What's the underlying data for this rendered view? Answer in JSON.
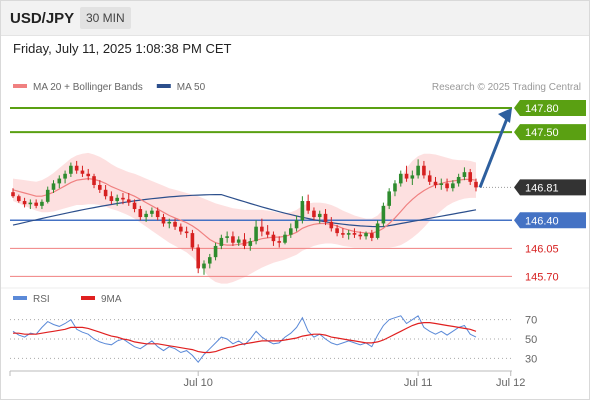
{
  "header": {
    "symbol": "USD/JPY",
    "timeframe": "30 MIN"
  },
  "datetime": "Friday, July 11, 2025 1:08:38 PM CET",
  "legend": [
    {
      "label": "MA 20 + Bollinger Bands",
      "color": "#f08080"
    },
    {
      "label": "MA 50",
      "color": "#2c4f8c"
    }
  ],
  "rsi_legend": [
    {
      "label": "RSI",
      "color": "#5b8ad8"
    },
    {
      "label": "9MA",
      "color": "#e02020"
    }
  ],
  "copyright": "Research © 2025 Trading Central",
  "colors": {
    "bull": "#2e8b2e",
    "bear": "#d62020",
    "target": "#5aa012",
    "pivot": "#4472c4",
    "support": "#f08080",
    "band": "#fcd6d6",
    "ma20": "#f08080",
    "ma50": "#2c4f8c",
    "rsi": "#5b8ad8",
    "rsi_ma": "#e02020",
    "arrow": "#2d5f9e",
    "last": "#333333"
  },
  "chart_data": [
    {
      "type": "candlestick",
      "title": "",
      "y_range": [
        145.68,
        147.9
      ],
      "x_ticks": [
        "Jul 10",
        "Jul 11",
        "Jul 12"
      ],
      "x_tick_index": [
        32,
        70,
        86
      ],
      "levels": [
        {
          "value": 147.8,
          "label": "147.80",
          "style": "target"
        },
        {
          "value": 147.5,
          "label": "147.50",
          "style": "target"
        },
        {
          "value": 146.81,
          "label": "146.81",
          "style": "last"
        },
        {
          "value": 146.4,
          "label": "146.40",
          "style": "pivot"
        },
        {
          "value": 146.05,
          "label": "146.05",
          "style": "support"
        },
        {
          "value": 145.7,
          "label": "145.70",
          "style": "support"
        }
      ],
      "projection": {
        "from": 146.81,
        "to": 147.8
      },
      "candles": [
        [
          146.75,
          146.8,
          146.68,
          146.7
        ],
        [
          146.7,
          146.72,
          146.62,
          146.64
        ],
        [
          146.64,
          146.68,
          146.56,
          146.6
        ],
        [
          146.6,
          146.66,
          146.54,
          146.62
        ],
        [
          146.62,
          146.66,
          146.55,
          146.58
        ],
        [
          146.58,
          146.66,
          146.54,
          146.63
        ],
        [
          146.63,
          146.82,
          146.61,
          146.78
        ],
        [
          146.78,
          146.9,
          146.74,
          146.86
        ],
        [
          146.86,
          146.96,
          146.8,
          146.92
        ],
        [
          146.92,
          147.02,
          146.86,
          146.98
        ],
        [
          146.98,
          147.12,
          146.94,
          147.08
        ],
        [
          147.08,
          147.14,
          146.98,
          147.02
        ],
        [
          147.02,
          147.08,
          146.94,
          146.98
        ],
        [
          146.98,
          147.04,
          146.9,
          146.95
        ],
        [
          146.95,
          146.98,
          146.8,
          146.84
        ],
        [
          146.84,
          146.9,
          146.74,
          146.78
        ],
        [
          146.78,
          146.84,
          146.66,
          146.7
        ],
        [
          146.7,
          146.76,
          146.6,
          146.64
        ],
        [
          146.64,
          146.72,
          146.58,
          146.68
        ],
        [
          146.68,
          146.74,
          146.6,
          146.66
        ],
        [
          146.66,
          146.74,
          146.58,
          146.62
        ],
        [
          146.62,
          146.66,
          146.5,
          146.54
        ],
        [
          146.54,
          146.58,
          146.4,
          146.44
        ],
        [
          146.44,
          146.52,
          146.38,
          146.48
        ],
        [
          146.48,
          146.56,
          146.44,
          146.52
        ],
        [
          146.52,
          146.56,
          146.4,
          146.44
        ],
        [
          146.44,
          146.48,
          146.32,
          146.36
        ],
        [
          146.36,
          146.42,
          146.3,
          146.38
        ],
        [
          146.38,
          146.42,
          146.28,
          146.32
        ],
        [
          146.32,
          146.36,
          146.22,
          146.26
        ],
        [
          146.26,
          146.32,
          146.18,
          146.24
        ],
        [
          146.24,
          146.28,
          146.02,
          146.06
        ],
        [
          146.06,
          146.1,
          145.74,
          145.8
        ],
        [
          145.8,
          145.9,
          145.72,
          145.86
        ],
        [
          145.86,
          145.98,
          145.8,
          145.94
        ],
        [
          145.94,
          146.12,
          145.9,
          146.08
        ],
        [
          146.08,
          146.22,
          146.04,
          146.18
        ],
        [
          146.18,
          146.26,
          146.12,
          146.2
        ],
        [
          146.2,
          146.26,
          146.08,
          146.12
        ],
        [
          146.12,
          146.2,
          146.08,
          146.16
        ],
        [
          146.16,
          146.24,
          146.04,
          146.08
        ],
        [
          146.08,
          146.18,
          146.02,
          146.14
        ],
        [
          146.14,
          146.4,
          146.1,
          146.32
        ],
        [
          146.32,
          146.42,
          146.2,
          146.26
        ],
        [
          146.26,
          146.34,
          146.18,
          146.22
        ],
        [
          146.22,
          146.26,
          146.08,
          146.14
        ],
        [
          146.14,
          146.2,
          146.06,
          146.12
        ],
        [
          146.12,
          146.26,
          146.1,
          146.22
        ],
        [
          146.22,
          146.36,
          146.18,
          146.3
        ],
        [
          146.3,
          146.46,
          146.26,
          146.4
        ],
        [
          146.4,
          146.7,
          146.36,
          146.64
        ],
        [
          146.64,
          146.72,
          146.48,
          146.52
        ],
        [
          146.52,
          146.56,
          146.4,
          146.44
        ],
        [
          146.44,
          146.52,
          146.36,
          146.48
        ],
        [
          146.48,
          146.54,
          146.34,
          146.38
        ],
        [
          146.38,
          146.44,
          146.26,
          146.3
        ],
        [
          146.3,
          146.34,
          146.2,
          146.24
        ],
        [
          146.24,
          146.3,
          146.18,
          146.22
        ],
        [
          146.22,
          146.28,
          146.16,
          146.24
        ],
        [
          146.24,
          146.3,
          146.18,
          146.22
        ],
        [
          146.22,
          146.26,
          146.16,
          146.2
        ],
        [
          146.2,
          146.26,
          146.16,
          146.24
        ],
        [
          146.24,
          146.28,
          146.14,
          146.18
        ],
        [
          146.18,
          146.4,
          146.16,
          146.36
        ],
        [
          146.36,
          146.62,
          146.32,
          146.58
        ],
        [
          146.58,
          146.8,
          146.54,
          146.76
        ],
        [
          146.76,
          146.9,
          146.7,
          146.86
        ],
        [
          146.86,
          147.02,
          146.82,
          146.98
        ],
        [
          146.98,
          147.08,
          146.88,
          146.92
        ],
        [
          146.92,
          147.02,
          146.84,
          146.96
        ],
        [
          146.96,
          147.16,
          146.92,
          147.08
        ],
        [
          147.08,
          147.14,
          146.92,
          146.96
        ],
        [
          146.96,
          147.02,
          146.84,
          146.88
        ],
        [
          146.88,
          146.94,
          146.8,
          146.84
        ],
        [
          146.84,
          146.92,
          146.78,
          146.86
        ],
        [
          146.86,
          146.92,
          146.76,
          146.8
        ],
        [
          146.8,
          146.9,
          146.76,
          146.86
        ],
        [
          146.86,
          146.98,
          146.82,
          146.94
        ],
        [
          146.94,
          147.06,
          146.9,
          147.0
        ],
        [
          147.0,
          147.04,
          146.84,
          146.88
        ],
        [
          146.88,
          146.92,
          146.76,
          146.81
        ]
      ],
      "ma20": [
        146.78,
        146.76,
        146.74,
        146.72,
        146.7,
        146.7,
        146.72,
        146.75,
        146.79,
        146.83,
        146.87,
        146.9,
        146.91,
        146.92,
        146.91,
        146.89,
        146.86,
        146.82,
        146.79,
        146.76,
        146.73,
        146.7,
        146.66,
        146.62,
        146.58,
        146.54,
        146.5,
        146.46,
        146.43,
        146.4,
        146.37,
        146.33,
        146.28,
        146.22,
        146.16,
        146.12,
        146.1,
        146.09,
        146.09,
        146.1,
        146.11,
        146.13,
        146.15,
        146.17,
        146.18,
        146.19,
        146.19,
        146.2,
        146.22,
        146.25,
        146.3,
        146.33,
        146.35,
        146.36,
        146.36,
        146.35,
        146.33,
        146.3,
        146.28,
        146.26,
        146.25,
        146.24,
        146.24,
        146.26,
        146.3,
        146.36,
        146.43,
        146.51,
        146.59,
        146.66,
        146.72,
        146.77,
        146.81,
        146.84,
        146.86,
        146.88,
        146.89,
        146.9,
        146.91,
        146.91,
        146.9
      ],
      "bb_width": [
        0.14,
        0.15,
        0.16,
        0.17,
        0.18,
        0.2,
        0.22,
        0.24,
        0.26,
        0.28,
        0.3,
        0.31,
        0.32,
        0.32,
        0.31,
        0.3,
        0.29,
        0.28,
        0.27,
        0.27,
        0.27,
        0.28,
        0.29,
        0.3,
        0.31,
        0.32,
        0.33,
        0.34,
        0.35,
        0.36,
        0.37,
        0.39,
        0.42,
        0.45,
        0.48,
        0.49,
        0.49,
        0.48,
        0.46,
        0.44,
        0.42,
        0.4,
        0.38,
        0.36,
        0.34,
        0.32,
        0.3,
        0.29,
        0.28,
        0.28,
        0.28,
        0.28,
        0.27,
        0.26,
        0.25,
        0.24,
        0.23,
        0.22,
        0.21,
        0.2,
        0.19,
        0.18,
        0.18,
        0.2,
        0.24,
        0.3,
        0.36,
        0.42,
        0.46,
        0.48,
        0.48,
        0.46,
        0.42,
        0.38,
        0.34,
        0.3,
        0.27,
        0.25,
        0.24,
        0.23,
        0.22
      ],
      "ma50_start": 146.34,
      "ma50_peak": 146.72,
      "ma50_end": 146.53
    },
    {
      "type": "line",
      "title": "",
      "y_ticks": [
        70,
        50,
        30
      ],
      "y_range": [
        20,
        80
      ],
      "series": [
        {
          "name": "RSI",
          "values": [
            58,
            54,
            52,
            56,
            55,
            62,
            68,
            65,
            63,
            66,
            70,
            60,
            57,
            55,
            50,
            47,
            45,
            44,
            48,
            50,
            46,
            42,
            40,
            44,
            48,
            42,
            38,
            42,
            40,
            36,
            38,
            33,
            26,
            34,
            40,
            46,
            52,
            50,
            45,
            48,
            44,
            50,
            58,
            52,
            48,
            45,
            46,
            52,
            56,
            62,
            72,
            58,
            52,
            55,
            50,
            46,
            44,
            46,
            48,
            46,
            44,
            46,
            42,
            54,
            64,
            70,
            72,
            74,
            66,
            70,
            74,
            62,
            58,
            55,
            58,
            54,
            58,
            62,
            64,
            55,
            52
          ]
        },
        {
          "name": "9MA",
          "values": [
            56,
            56,
            55,
            55,
            55,
            56,
            57,
            58,
            59,
            60,
            62,
            62,
            62,
            61,
            59,
            57,
            55,
            53,
            52,
            50,
            49,
            47,
            46,
            45,
            45,
            45,
            44,
            43,
            42,
            41,
            40,
            39,
            37,
            36,
            36,
            37,
            39,
            41,
            42,
            44,
            45,
            46,
            47,
            48,
            48,
            48,
            48,
            49,
            50,
            51,
            53,
            54,
            55,
            55,
            54,
            52,
            51,
            50,
            49,
            48,
            47,
            46,
            46,
            47,
            49,
            52,
            55,
            58,
            61,
            64,
            66,
            67,
            67,
            66,
            65,
            64,
            63,
            62,
            61,
            60,
            58
          ]
        }
      ]
    }
  ]
}
